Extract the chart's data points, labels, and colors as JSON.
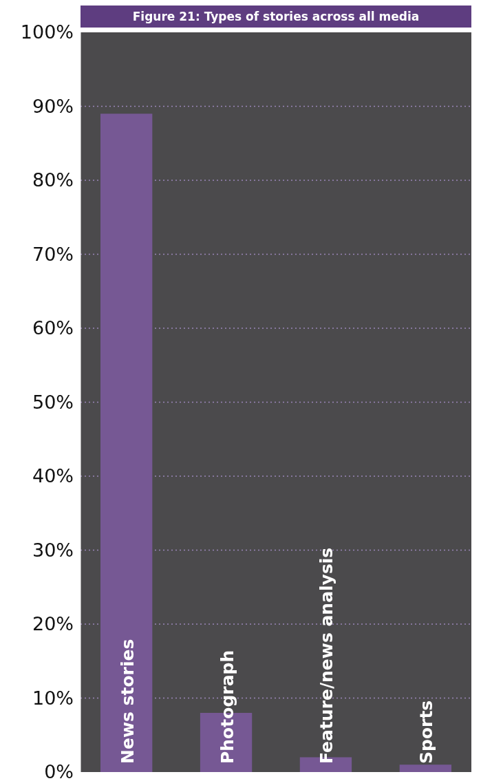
{
  "chart_data": {
    "type": "bar",
    "title": "Figure 21: Types of stories across all media",
    "categories": [
      "News stories",
      "Photograph",
      "Feature/news analysis",
      "Sports"
    ],
    "values": [
      89,
      8,
      2,
      1
    ],
    "color": "#765894",
    "ylim": [
      0,
      100
    ],
    "yticks": [
      {
        "value": 0,
        "label": "0%"
      },
      {
        "value": 10,
        "label": "10%"
      },
      {
        "value": 20,
        "label": "20%"
      },
      {
        "value": 30,
        "label": "30%"
      },
      {
        "value": 40,
        "label": "40%"
      },
      {
        "value": 50,
        "label": "50%"
      },
      {
        "value": 60,
        "label": "60%"
      },
      {
        "value": 70,
        "label": "70%"
      },
      {
        "value": 80,
        "label": "80%"
      },
      {
        "value": 90,
        "label": "90%"
      },
      {
        "value": 100,
        "label": "100%"
      }
    ],
    "grid": "y"
  }
}
